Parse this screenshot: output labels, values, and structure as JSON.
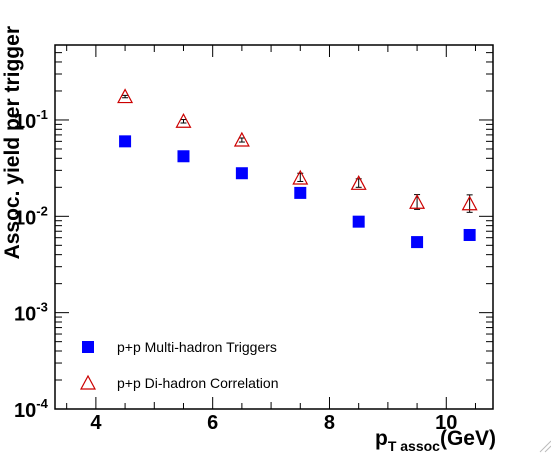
{
  "chart_data": {
    "type": "scatter",
    "title": "",
    "xlabel": {
      "base": "p",
      "subscript": "T assoc",
      "unit": "(GeV)"
    },
    "ylabel": "Assoc. yield per trigger",
    "xlim": [
      3.3,
      10.8
    ],
    "ylim": [
      0.0001,
      0.6
    ],
    "y_scale": "log",
    "x_ticks": [
      {
        "value": 4,
        "label": "4"
      },
      {
        "value": 6,
        "label": "6"
      },
      {
        "value": 8,
        "label": "8"
      },
      {
        "value": 10,
        "label": "10"
      }
    ],
    "y_ticks": [
      {
        "value": 0.0001,
        "base": "10",
        "exp": "-4"
      },
      {
        "value": 0.001,
        "base": "10",
        "exp": "-3"
      },
      {
        "value": 0.01,
        "base": "10",
        "exp": "-2"
      },
      {
        "value": 0.1,
        "base": "10",
        "exp": "-1"
      }
    ],
    "grid": false,
    "legend_position": "bottom-left",
    "series": [
      {
        "name": "p+p Multi-hadron Triggers",
        "marker": "filled-square",
        "color": "#0000ff",
        "x": [
          4.5,
          5.5,
          6.5,
          7.5,
          8.5,
          9.5,
          10.4
        ],
        "y": [
          0.06,
          0.042,
          0.028,
          0.0175,
          0.0088,
          0.0054,
          0.0064
        ],
        "err_low": [
          0.002,
          0.0015,
          0.001,
          0.0008,
          0.0007,
          0.0006,
          0.0006
        ],
        "err_high": [
          0.002,
          0.0015,
          0.001,
          0.0008,
          0.0007,
          0.0006,
          0.0006
        ]
      },
      {
        "name": "p+p Di-hadron Correlation",
        "marker": "open-triangle",
        "color": "#cc0000",
        "x": [
          4.5,
          5.5,
          6.5,
          7.5,
          8.5,
          9.5,
          10.4
        ],
        "y": [
          0.175,
          0.097,
          0.062,
          0.025,
          0.022,
          0.014,
          0.0135
        ],
        "err_low": [
          0.005,
          0.004,
          0.003,
          0.002,
          0.002,
          0.0022,
          0.0025
        ],
        "err_high": [
          0.005,
          0.004,
          0.003,
          0.003,
          0.0025,
          0.0028,
          0.0032
        ]
      }
    ]
  }
}
